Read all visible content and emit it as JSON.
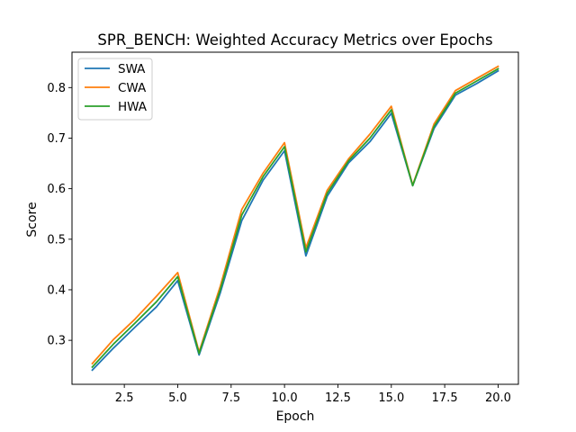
{
  "chart_data": {
    "type": "line",
    "title": "SPR_BENCH: Weighted Accuracy Metrics over Epochs",
    "xlabel": "Epoch",
    "ylabel": "Score",
    "xlim": [
      0.05,
      20.95
    ],
    "ylim": [
      0.213,
      0.87
    ],
    "xticks": [
      2.5,
      5.0,
      7.5,
      10.0,
      12.5,
      15.0,
      17.5,
      20.0
    ],
    "xtick_labels": [
      "2.5",
      "5.0",
      "7.5",
      "10.0",
      "12.5",
      "15.0",
      "17.5",
      "20.0"
    ],
    "yticks": [
      0.3,
      0.4,
      0.5,
      0.6,
      0.7,
      0.8
    ],
    "ytick_labels": [
      "0.3",
      "0.4",
      "0.5",
      "0.6",
      "0.7",
      "0.8"
    ],
    "grid": false,
    "legend_position": "top-left",
    "x": [
      1,
      2,
      3,
      4,
      5,
      6,
      7,
      8,
      9,
      10,
      11,
      12,
      13,
      14,
      15,
      16,
      17,
      18,
      19,
      20
    ],
    "series": [
      {
        "name": "SWA",
        "color": "#1f77b4",
        "values": [
          0.241,
          0.285,
          0.326,
          0.366,
          0.418,
          0.271,
          0.395,
          0.537,
          0.617,
          0.675,
          0.467,
          0.585,
          0.651,
          0.693,
          0.749,
          0.606,
          0.719,
          0.785,
          0.808,
          0.833
        ]
      },
      {
        "name": "CWA",
        "color": "#ff7f0e",
        "values": [
          0.254,
          0.302,
          0.342,
          0.387,
          0.434,
          0.277,
          0.408,
          0.559,
          0.631,
          0.691,
          0.483,
          0.597,
          0.659,
          0.708,
          0.763,
          0.607,
          0.728,
          0.794,
          0.818,
          0.842
        ]
      },
      {
        "name": "HWA",
        "color": "#2ca02c",
        "values": [
          0.247,
          0.293,
          0.334,
          0.376,
          0.426,
          0.274,
          0.401,
          0.548,
          0.624,
          0.683,
          0.475,
          0.591,
          0.655,
          0.7,
          0.756,
          0.606,
          0.723,
          0.789,
          0.813,
          0.837
        ]
      }
    ]
  }
}
